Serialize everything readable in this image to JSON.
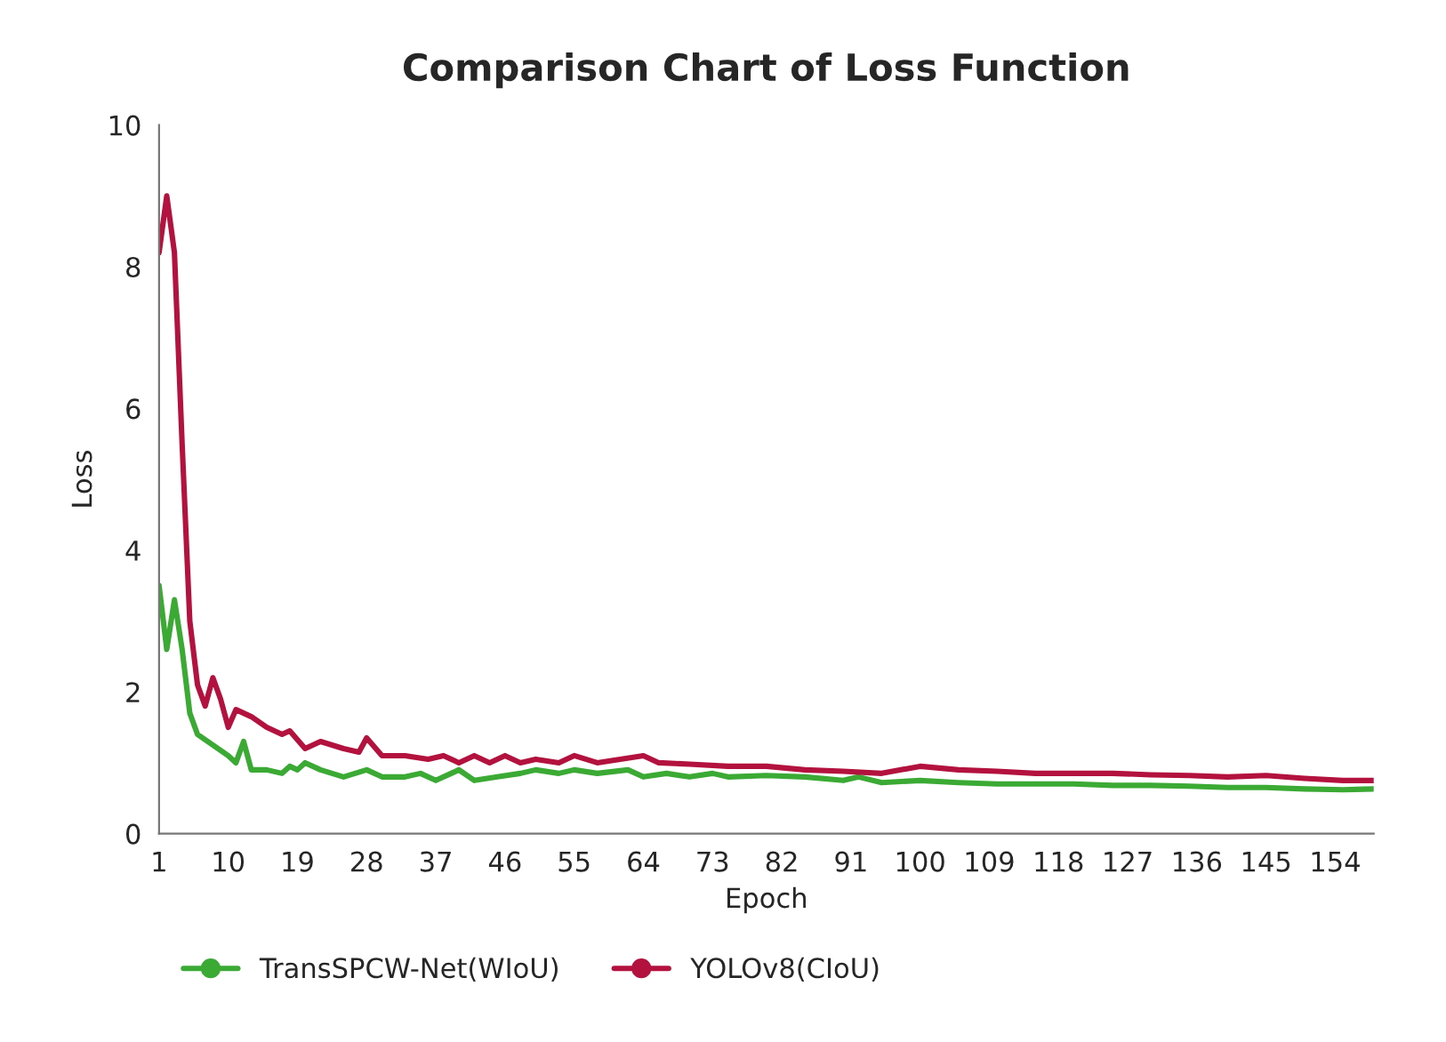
{
  "chart_data": {
    "type": "line",
    "title": "Comparison Chart of Loss Function",
    "xlabel": "Epoch",
    "ylabel": "Loss",
    "xlim": [
      1,
      159
    ],
    "xticks": [
      1,
      10,
      19,
      28,
      37,
      46,
      55,
      64,
      73,
      82,
      91,
      100,
      109,
      118,
      127,
      136,
      145,
      154
    ],
    "ylim": [
      0,
      10
    ],
    "yticks": [
      0,
      2,
      4,
      6,
      8,
      10
    ],
    "grid": false,
    "legend": "bottom",
    "marker": "none",
    "line_style": "solid",
    "series": [
      {
        "name": "TransSPCW-Net(WIoU)",
        "color": "#3aaa35",
        "x": [
          1,
          2,
          3,
          4,
          5,
          6,
          8,
          10,
          11,
          12,
          13,
          15,
          17,
          18,
          19,
          20,
          22,
          25,
          28,
          30,
          33,
          35,
          37,
          39,
          40,
          42,
          45,
          48,
          50,
          53,
          55,
          58,
          62,
          64,
          67,
          70,
          73,
          75,
          80,
          85,
          90,
          92,
          95,
          100,
          105,
          110,
          115,
          120,
          125,
          130,
          135,
          140,
          145,
          150,
          155,
          159
        ],
        "values": [
          3.5,
          2.6,
          3.3,
          2.6,
          1.7,
          1.4,
          1.25,
          1.1,
          1.0,
          1.3,
          0.9,
          0.9,
          0.85,
          0.95,
          0.9,
          1.0,
          0.9,
          0.8,
          0.9,
          0.8,
          0.8,
          0.85,
          0.75,
          0.85,
          0.9,
          0.75,
          0.8,
          0.85,
          0.9,
          0.85,
          0.9,
          0.85,
          0.9,
          0.8,
          0.85,
          0.8,
          0.85,
          0.8,
          0.82,
          0.8,
          0.75,
          0.8,
          0.72,
          0.75,
          0.72,
          0.7,
          0.7,
          0.7,
          0.68,
          0.68,
          0.67,
          0.65,
          0.65,
          0.63,
          0.62,
          0.63
        ]
      },
      {
        "name": "YOLOv8(CIoU)",
        "color": "#b3123f",
        "x": [
          1,
          2,
          3,
          4,
          5,
          6,
          7,
          8,
          9,
          10,
          11,
          13,
          15,
          17,
          18,
          20,
          22,
          25,
          27,
          28,
          30,
          33,
          36,
          38,
          40,
          42,
          44,
          46,
          48,
          50,
          53,
          55,
          58,
          61,
          64,
          66,
          70,
          75,
          80,
          85,
          90,
          95,
          100,
          105,
          110,
          115,
          120,
          125,
          130,
          135,
          140,
          145,
          150,
          155,
          159
        ],
        "values": [
          8.2,
          9.0,
          8.2,
          5.5,
          3.0,
          2.1,
          1.8,
          2.2,
          1.9,
          1.5,
          1.75,
          1.65,
          1.5,
          1.4,
          1.45,
          1.2,
          1.3,
          1.2,
          1.15,
          1.35,
          1.1,
          1.1,
          1.05,
          1.1,
          1.0,
          1.1,
          1.0,
          1.1,
          1.0,
          1.05,
          1.0,
          1.1,
          1.0,
          1.05,
          1.1,
          1.0,
          0.98,
          0.95,
          0.95,
          0.9,
          0.88,
          0.85,
          0.95,
          0.9,
          0.88,
          0.85,
          0.85,
          0.85,
          0.83,
          0.82,
          0.8,
          0.82,
          0.78,
          0.75,
          0.75
        ]
      }
    ]
  }
}
